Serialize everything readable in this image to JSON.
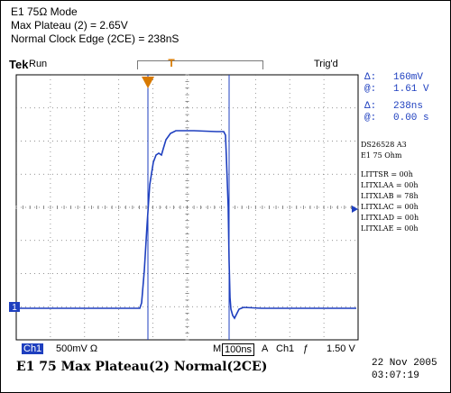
{
  "header": {
    "line1": "E1 75Ω Mode",
    "line2": "Max Plateau (2) = 2.65V",
    "line3": "Normal Clock Edge (2CE) = 238nS"
  },
  "topbar": {
    "logo": "Tek",
    "run": "Run",
    "trig_status": "Trig'd",
    "trig_marker": "T"
  },
  "cursor_readouts": {
    "r1_label": "Δ:",
    "r1_value": "160mV",
    "r2_label": "@:",
    "r2_value": "1.61 V",
    "r3_label": "Δ:",
    "r3_value": "238ns",
    "r4_label": "@:",
    "r4_value": "0.00 s"
  },
  "device_info": {
    "part": "DS26528 A3",
    "mode": "E1 75 Ohm",
    "regs": [
      "LITTSR = 00h",
      "LITXLAA = 00h",
      "LITXLAB = 78h",
      "LITXLAC = 00h",
      "LITXLAD = 00h",
      "LITXLAE = 00h"
    ]
  },
  "channel_marker": "1",
  "bottom_bar": {
    "ch": "Ch1",
    "scale": "500mV Ω",
    "m_label": "M",
    "timebase": "100ns",
    "a_label": "A",
    "trig_ch": "Ch1",
    "slope": "ƒ",
    "trig_level": "1.50 V"
  },
  "caption": "E1 75 Max Plateau(2)  Normal(2CE)",
  "date": "22 Nov 2005",
  "time": "03:07:19",
  "colors": {
    "trace": "#1e3fbf",
    "grid": "#6f6f6f",
    "accent": "#d87a00"
  }
}
